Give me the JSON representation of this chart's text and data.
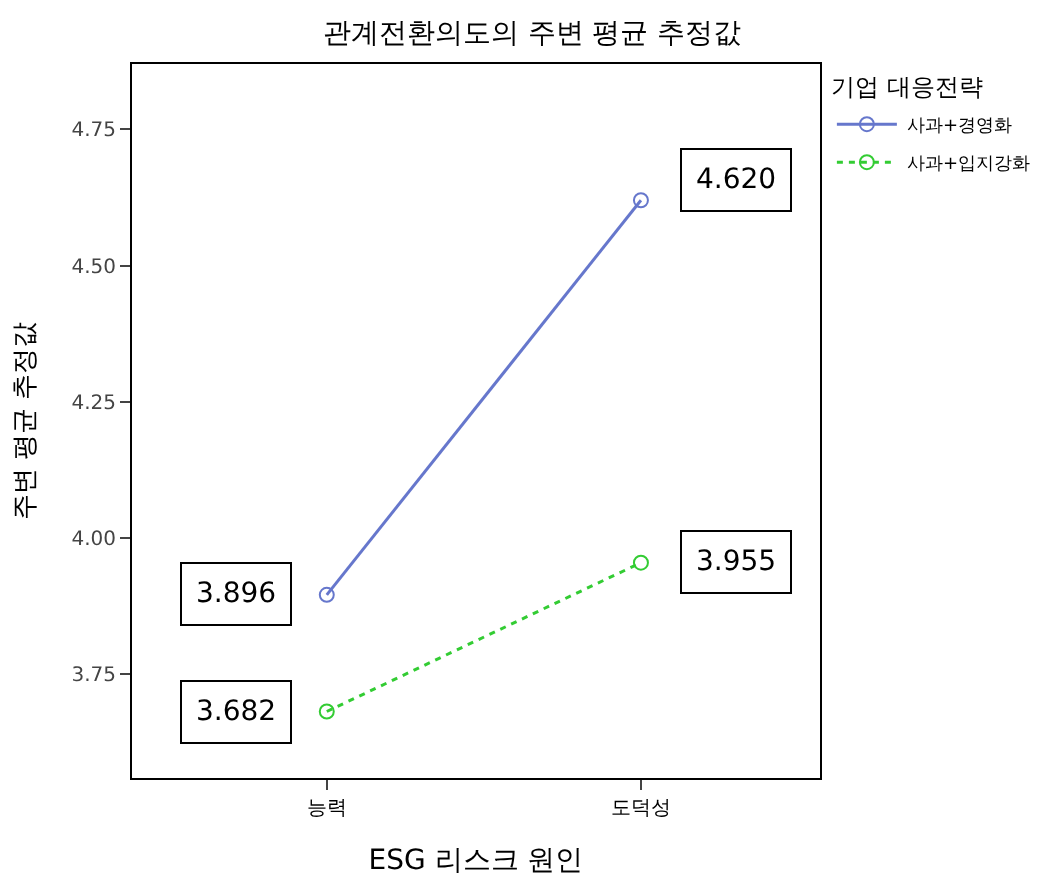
{
  "chart_data": {
    "type": "line",
    "title": "관계전환의도의 주변 평균 추정값",
    "xlabel": "ESG 리스크 원인",
    "ylabel": "주변 평균 추정값",
    "legend_title": "기업 대응전략",
    "categories": [
      "능력",
      "도덕성"
    ],
    "series": [
      {
        "name": "사과+경영화",
        "color": "#6677cc",
        "values": [
          3.896,
          4.62
        ],
        "value_labels": [
          "3.896",
          "4.620"
        ],
        "line_style": "solid"
      },
      {
        "name": "사과+입지강화",
        "color": "#33cc33",
        "values": [
          3.682,
          3.955
        ],
        "value_labels": [
          "3.682",
          "3.955"
        ],
        "line_style": "dotted"
      }
    ],
    "ylim": [
      3.56,
      4.87
    ],
    "yticks": [
      {
        "value": 3.75,
        "label": "3.75"
      },
      {
        "value": 4.0,
        "label": "4.00"
      },
      {
        "value": 4.25,
        "label": "4.25"
      },
      {
        "value": 4.5,
        "label": "4.50"
      },
      {
        "value": 4.75,
        "label": "4.75"
      }
    ],
    "marker": "circle",
    "legend": "top right"
  }
}
